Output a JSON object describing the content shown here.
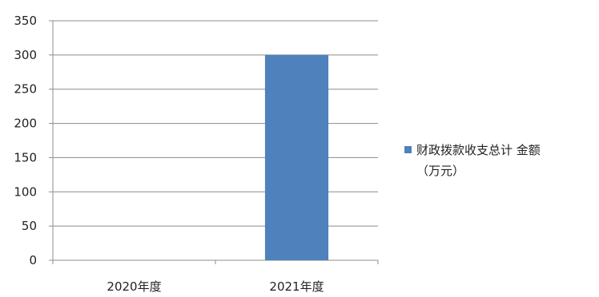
{
  "chart_data": {
    "type": "bar",
    "categories": [
      "2020年度",
      "2021年度"
    ],
    "series": [
      {
        "name": "财政拨款收支总计 金额（万元）",
        "values": [
          0,
          300
        ],
        "color": "#4f81bd"
      }
    ],
    "ylim": [
      0,
      350
    ],
    "yticks": [
      0,
      50,
      100,
      150,
      200,
      250,
      300,
      350
    ],
    "grid": true,
    "legend_position": "right",
    "title": "",
    "xlabel": "",
    "ylabel": ""
  },
  "legend": {
    "line1": "财政拨款收支总计 金额",
    "line2": "（万元）"
  }
}
